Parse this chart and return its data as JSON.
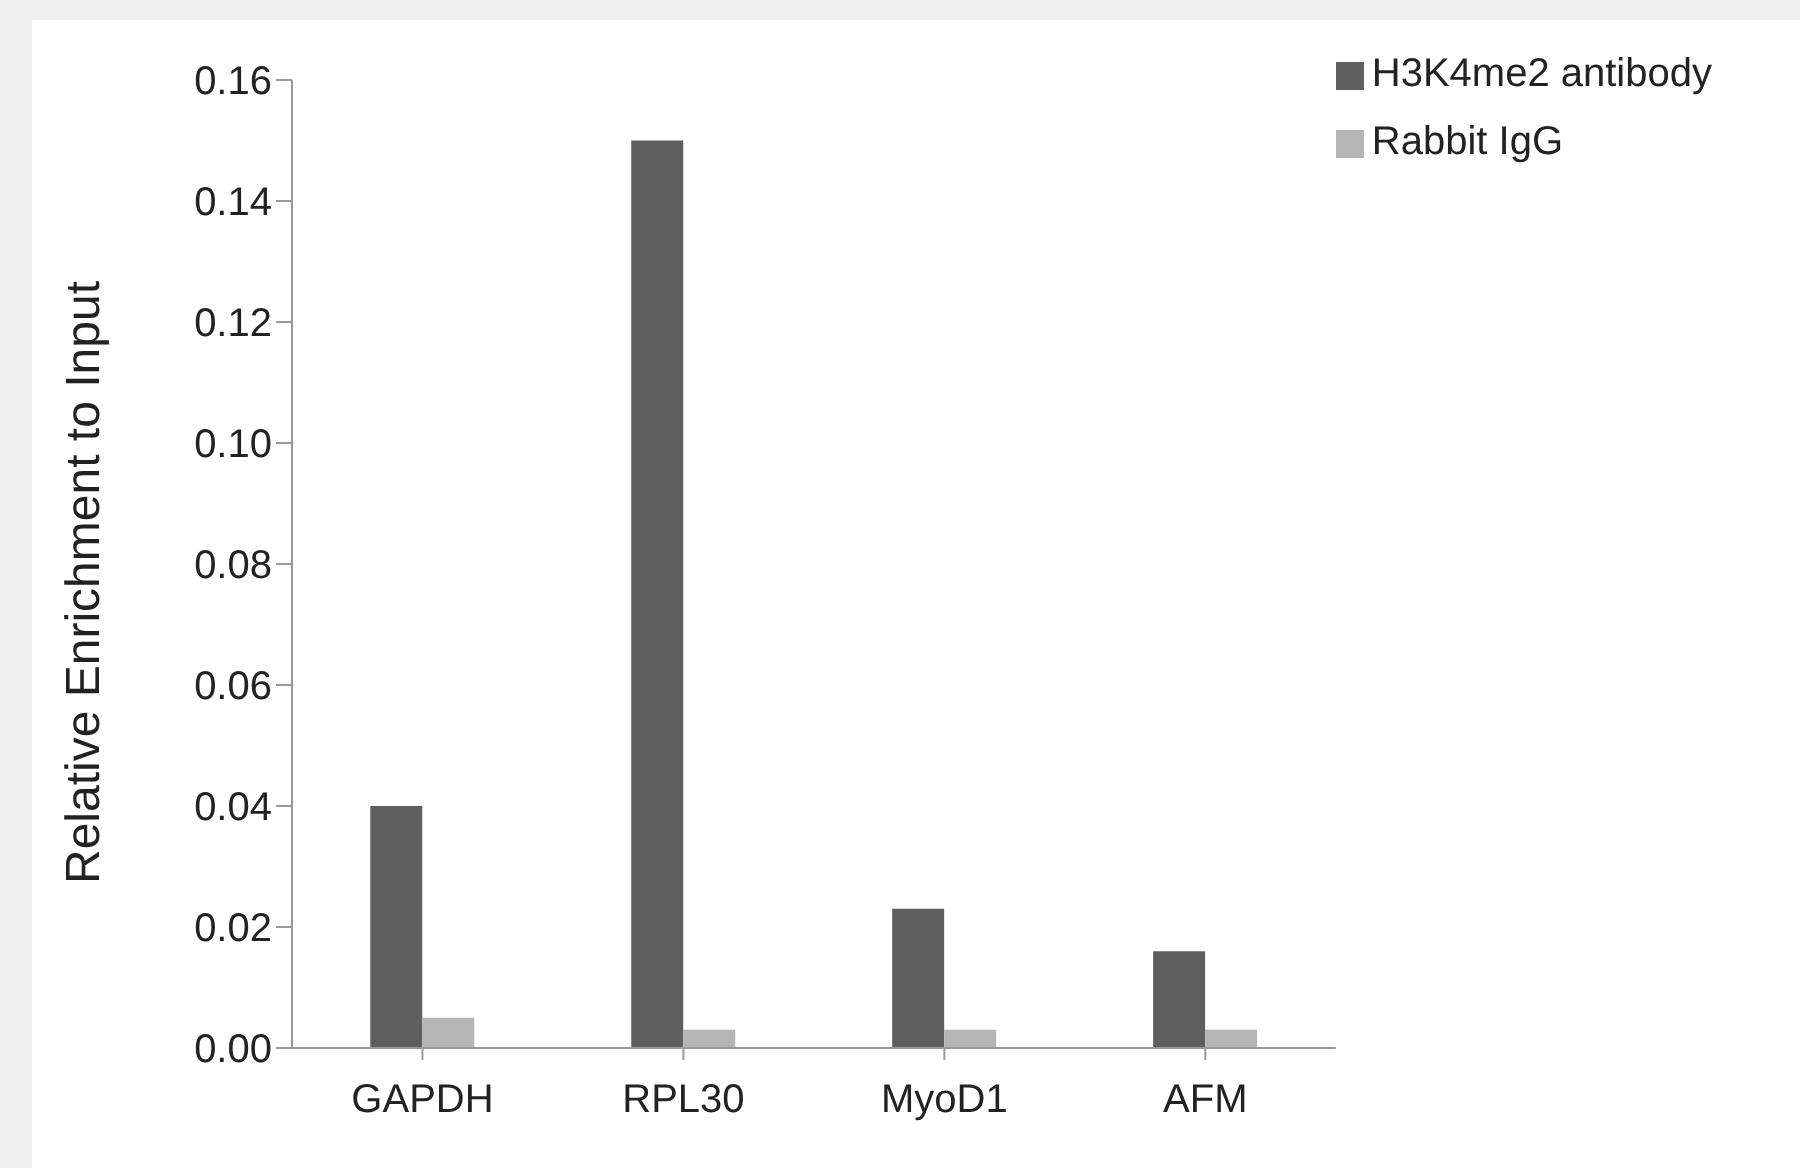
{
  "chart_data": {
    "type": "bar",
    "ylabel": "Relative Enrichment to Input",
    "categories": [
      "GAPDH",
      "RPL30",
      "MyoD1",
      "AFM"
    ],
    "series": [
      {
        "name": "H3K4me2 antibody",
        "color": "#5f5f5f",
        "values": [
          0.04,
          0.15,
          0.023,
          0.016
        ]
      },
      {
        "name": "Rabbit IgG",
        "color": "#b5b5b5",
        "values": [
          0.005,
          0.003,
          0.003,
          0.003
        ]
      }
    ],
    "ylim": [
      0,
      0.16
    ],
    "yticks": [
      {
        "value": 0,
        "label": "0.00"
      },
      {
        "value": 0.02,
        "label": "0.02"
      },
      {
        "value": 0.04,
        "label": "0.04"
      },
      {
        "value": 0.06,
        "label": "0.06"
      },
      {
        "value": 0.08,
        "label": "0.08"
      },
      {
        "value": 0.1,
        "label": "0.10"
      },
      {
        "value": 0.12,
        "label": "0.12"
      },
      {
        "value": 0.14,
        "label": "0.14"
      },
      {
        "value": 0.16,
        "label": "0.16"
      }
    ],
    "grid": false,
    "legend": "top right"
  }
}
